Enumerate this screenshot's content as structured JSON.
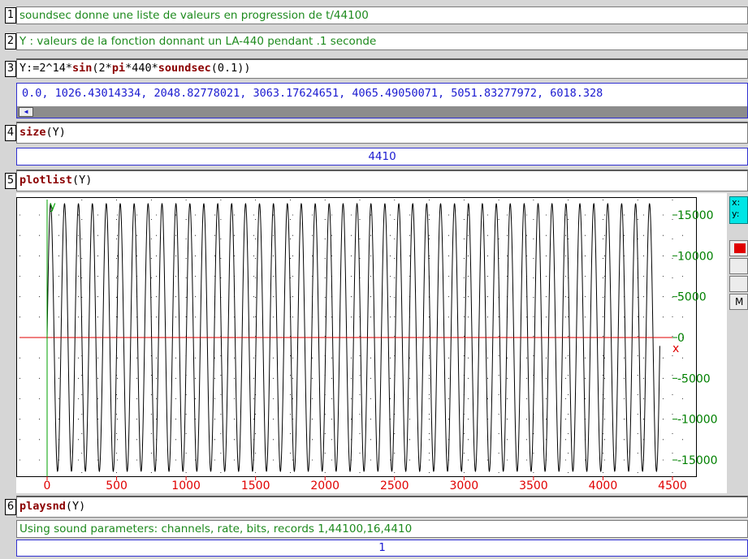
{
  "cells": [
    {
      "level": "1",
      "text": "soundsec donne une liste de valeurs en progression de t/44100"
    },
    {
      "level": "2",
      "text": "Y : valeurs de la fonction donnant un LA-440 pendant .1 seconde"
    },
    {
      "level": "3",
      "cmd_pre": "Y:=2^14*",
      "kw1": "sin",
      "cmd_mid1": "(2*",
      "kw2": "pi",
      "cmd_mid2": "*440*",
      "kw3": "soundsec",
      "cmd_post": "(0.1))",
      "output": "0.0, 1026.43014334, 2048.82778021, 3063.17624651, 4065.49050071, 5051.83277972, 6018.328"
    },
    {
      "level": "4",
      "kw": "size",
      "cmd_post": "(Y)",
      "output": "4410"
    },
    {
      "level": "5",
      "kw": "plotlist",
      "cmd_post": "(Y)"
    },
    {
      "level": "6",
      "kw": "playsnd",
      "cmd_post": "(Y)",
      "message": "Using sound parameters: channels, rate, bits, records 1,44100,16,4410",
      "output": "1"
    }
  ],
  "plot_panel": {
    "coord_x": "x:",
    "coord_y": "y:",
    "extra_btn": "M"
  },
  "chart_data": {
    "type": "line",
    "x_range": [
      0,
      4410
    ],
    "xlim": [
      0,
      4500
    ],
    "ylim": [
      -16384,
      16384
    ],
    "x_ticks": [
      "0",
      "500",
      "1000",
      "1500",
      "2000",
      "2500",
      "3000",
      "3500",
      "4000",
      "4500"
    ],
    "x_tick_values": [
      0,
      500,
      1000,
      1500,
      2000,
      2500,
      3000,
      3500,
      4000,
      4500
    ],
    "y_ticks": [
      "15000",
      "10000",
      "5000",
      "0",
      "-5000",
      "-10000",
      "-15000"
    ],
    "y_tick_values": [
      15000,
      10000,
      5000,
      0,
      -5000,
      -10000,
      -15000
    ],
    "xlabel": "x",
    "ylabel": "y",
    "amplitude": 16384,
    "frequency_hz": 440,
    "sample_rate": 44100,
    "n_points": 4410,
    "colors": {
      "curve": "#000000",
      "x_axis": "#e00000",
      "y_axis": "#00a000",
      "y_ticklabels": "#008000",
      "x_ticklabels": "#e00000"
    }
  }
}
